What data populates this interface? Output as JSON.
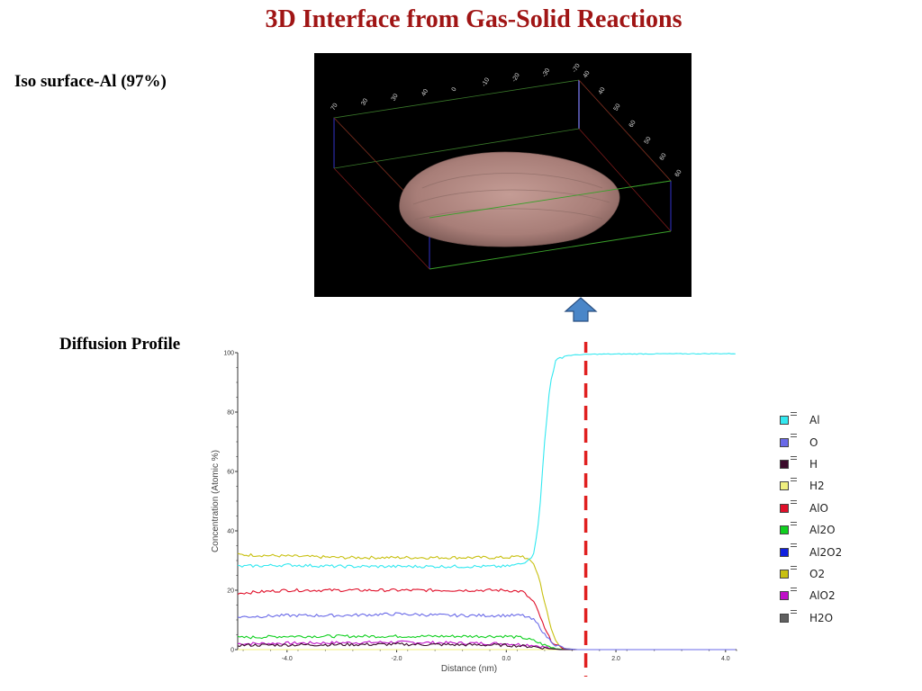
{
  "slide": {
    "title": "3D Interface from Gas-Solid Reactions",
    "iso_label": "Iso surface-Al (97%)",
    "diffusion_label": "Diffusion Profile"
  },
  "render_3d": {
    "background": "#000000",
    "surface_color": "#b58c86",
    "top_axis_numbers": [
      "70",
      "30",
      "30",
      "40",
      "0",
      "-10",
      "-20",
      "-30",
      "-70"
    ],
    "side_axis_numbers": [
      "40",
      "40",
      "50",
      "60",
      "50",
      "60",
      "60"
    ]
  },
  "chart_data": {
    "type": "line",
    "xlabel": "Distance (nm)",
    "ylabel": "Concentration (Atomic %)",
    "xlim": [
      -4.9,
      4.2
    ],
    "ylim": [
      0,
      100
    ],
    "x_ticks": [
      -4.0,
      -2.0,
      0.0,
      2.0,
      4.0
    ],
    "x_tick_labels": [
      "-4.0",
      "-2.0",
      "0.0",
      "2.0",
      "4.0"
    ],
    "y_ticks": [
      0,
      20,
      40,
      60,
      80,
      100
    ],
    "y_tick_labels": [
      "0",
      "20",
      "40",
      "60",
      "80",
      "100"
    ],
    "interface_marker_x": 1.45,
    "interface_marker_color": "#e02020",
    "legend_position": "right",
    "series": [
      {
        "name": "Al",
        "color": "#33e8f0",
        "x": [
          -4.9,
          -4.0,
          -3.0,
          -2.0,
          -1.0,
          0.0,
          0.3,
          0.5,
          0.6,
          0.7,
          0.8,
          0.9,
          1.0,
          1.1,
          1.3,
          1.6,
          2.5,
          4.2
        ],
        "values": [
          28,
          28.5,
          28,
          28,
          28,
          28,
          29,
          32,
          45,
          70,
          90,
          97,
          98.5,
          99,
          99.3,
          99.5,
          99.6,
          99.7
        ]
      },
      {
        "name": "O",
        "color": "#6a6ae8",
        "x": [
          -4.9,
          -4.0,
          -3.0,
          -2.0,
          -1.0,
          0.0,
          0.3,
          0.5,
          0.6,
          0.7,
          0.9,
          1.1,
          1.3,
          1.6,
          4.2
        ],
        "values": [
          11,
          11.5,
          11.5,
          12,
          11.5,
          11.5,
          11.5,
          10,
          8,
          5,
          1.5,
          0.3,
          0,
          0,
          0
        ]
      },
      {
        "name": "H",
        "color": "#3a0a2a",
        "x": [
          -4.9,
          -2.0,
          0.0,
          0.5,
          0.8,
          1.0,
          4.2
        ],
        "values": [
          1.5,
          1.8,
          1.5,
          1.0,
          0.3,
          0,
          0
        ]
      },
      {
        "name": "H2",
        "color": "#f0f080",
        "x": [
          -4.9,
          4.2
        ],
        "values": [
          0,
          0
        ]
      },
      {
        "name": "AlO",
        "color": "#e0102a",
        "x": [
          -4.9,
          -4.0,
          -3.0,
          -2.0,
          -1.0,
          0.0,
          0.3,
          0.5,
          0.6,
          0.7,
          0.8,
          0.9,
          1.0,
          1.1,
          1.3,
          1.6,
          4.2
        ],
        "values": [
          19,
          20,
          20,
          20,
          20,
          20,
          19.5,
          16,
          12,
          7,
          3.5,
          1.5,
          0.5,
          0.2,
          0,
          0,
          0
        ]
      },
      {
        "name": "Al2O",
        "color": "#10d020",
        "x": [
          -4.9,
          -4.0,
          -3.0,
          -2.0,
          -1.0,
          0.0,
          0.3,
          0.5,
          0.7,
          0.9,
          1.1,
          4.2
        ],
        "values": [
          4,
          4.5,
          4.5,
          4.5,
          4.5,
          4.5,
          4,
          3,
          1.5,
          0.3,
          0,
          0
        ]
      },
      {
        "name": "Al2O2",
        "color": "#1020e0",
        "x": [
          -4.9,
          4.2
        ],
        "values": [
          0,
          0
        ]
      },
      {
        "name": "O2",
        "color": "#c8c010",
        "x": [
          -4.9,
          -4.0,
          -3.0,
          -2.0,
          -1.0,
          0.0,
          0.3,
          0.5,
          0.6,
          0.7,
          0.8,
          0.9,
          1.0,
          1.1,
          1.3,
          1.6,
          4.2
        ],
        "values": [
          32,
          31.5,
          31,
          31,
          31,
          31,
          31.5,
          29,
          24,
          16,
          8,
          3,
          1,
          0.3,
          0,
          0,
          0
        ]
      },
      {
        "name": "AlO2",
        "color": "#c010c8",
        "x": [
          -4.9,
          -2.0,
          0.0,
          0.5,
          0.8,
          1.0,
          4.2
        ],
        "values": [
          2,
          2.5,
          2,
          1.5,
          0.5,
          0,
          0
        ]
      },
      {
        "name": "H2O",
        "color": "#606060",
        "x": [
          -4.9,
          4.2
        ],
        "values": [
          0,
          0
        ]
      }
    ]
  }
}
